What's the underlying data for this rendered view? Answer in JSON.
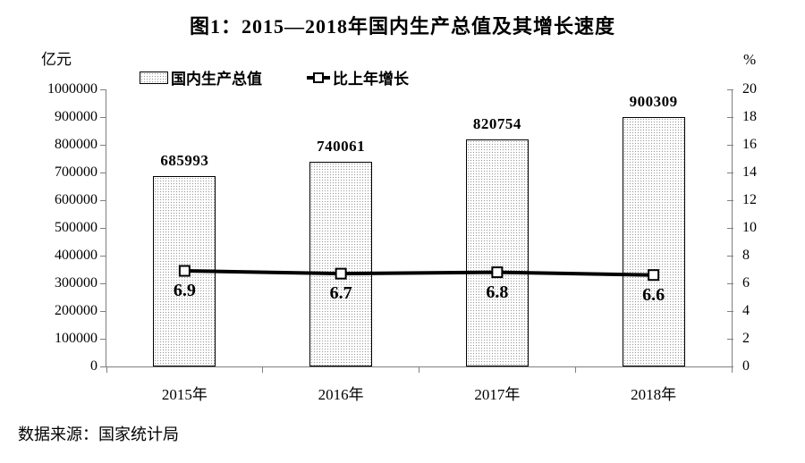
{
  "title": "图1：2015—2018年国内生产总值及其增长速度",
  "left_axis": {
    "unit": "亿元",
    "min": 0,
    "max": 1000000,
    "step": 100000
  },
  "right_axis": {
    "unit": "%",
    "min": 0,
    "max": 20,
    "step": 2
  },
  "legend": [
    {
      "label": "国内生产总值",
      "swatch": "stippled-bar"
    },
    {
      "label": "比上年增长",
      "swatch": "line-with-square-marker"
    }
  ],
  "source": "数据来源：国家统计局",
  "colors": {
    "text": "#000000",
    "axis": "#7f7f7f",
    "bar_outline": "#000000",
    "bar_fill_dots": "#9a9a9a",
    "line": "#000000",
    "marker_fill": "#ffffff"
  },
  "chart_data": {
    "type": "bar",
    "categories": [
      "2015年",
      "2016年",
      "2017年",
      "2018年"
    ],
    "series": [
      {
        "name": "国内生产总值",
        "type": "bar",
        "axis": "left",
        "values": [
          685993,
          740061,
          820754,
          900309
        ]
      },
      {
        "name": "比上年增长",
        "type": "line",
        "axis": "right",
        "values": [
          6.9,
          6.7,
          6.8,
          6.6
        ]
      }
    ],
    "title": "图1：2015—2018年国内生产总值及其增长速度",
    "xlabel": "",
    "ylabel_left": "亿元",
    "ylabel_right": "%",
    "ylim_left": [
      0,
      1000000
    ],
    "ylim_right": [
      0,
      20
    ],
    "grid": false,
    "legend_position": "top"
  }
}
